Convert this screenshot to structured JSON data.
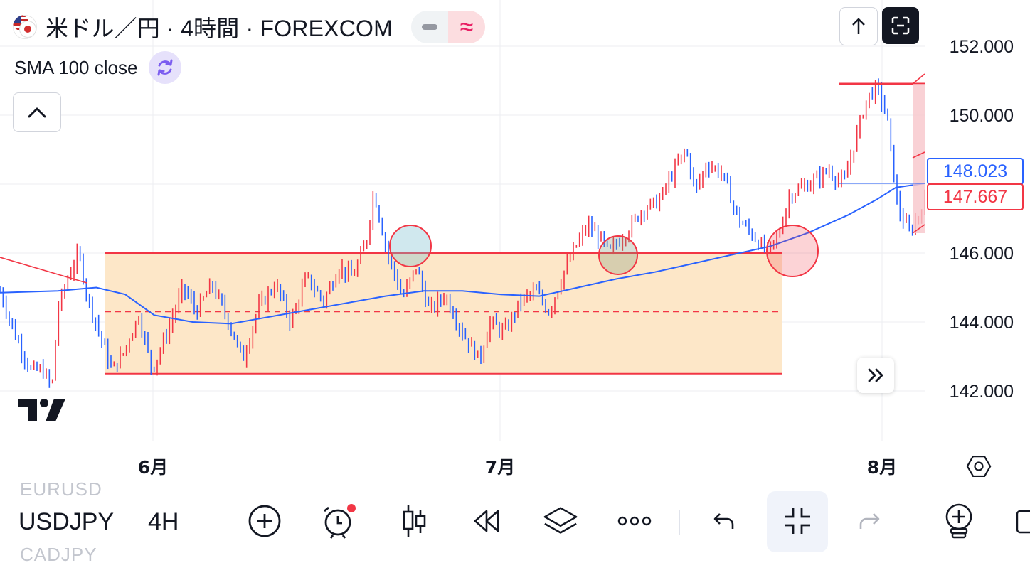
{
  "header": {
    "title": "米ドル／円 · 4時間 · FOREXCOM",
    "indicator_label": "SMA 100 close",
    "mode_minus_icon": "minus-icon",
    "mode_wave_glyph": "≈"
  },
  "colors": {
    "up": "#f23645",
    "down": "#2962ff",
    "sma": "#2962ff",
    "range_fill": "#fde7c8",
    "range_line": "#f23645",
    "grid": "#eceef2",
    "text": "#131722"
  },
  "price_tags": {
    "sma": "148.023",
    "last": "147.667"
  },
  "chart_data": {
    "type": "candlestick",
    "title": "米ドル／円 · 4時間 · FOREXCOM",
    "y_ticks": [
      "152.000",
      "150.000",
      "148.000",
      "146.000",
      "144.000",
      "142.000"
    ],
    "y_range": [
      140.3,
      152.8
    ],
    "x_ticks": [
      "6月",
      "7月",
      "8月"
    ],
    "series": [
      {
        "name": "SMA 100 close",
        "type": "line",
        "color": "#2962ff",
        "values_by_date": [
          [
            "5/21",
            144.8
          ],
          [
            "5/28",
            144.95
          ],
          [
            "6/04",
            144.9
          ],
          [
            "6/11",
            144.1
          ],
          [
            "6/18",
            143.95
          ],
          [
            "6/25",
            144.35
          ],
          [
            "7/02",
            144.8
          ],
          [
            "7/08",
            144.7
          ],
          [
            "7/15",
            145.3
          ],
          [
            "7/22",
            146.0
          ],
          [
            "7/29",
            147.2
          ],
          [
            "8/04",
            148.0
          ]
        ]
      }
    ],
    "price_path": [
      [
        0,
        144.9
      ],
      [
        0.8,
        143.6
      ],
      [
        1.6,
        142.6
      ],
      [
        2.2,
        142.6
      ],
      [
        2.7,
        142.1
      ],
      [
        3.0,
        144.4
      ],
      [
        3.6,
        145.4
      ],
      [
        4.1,
        146.0
      ],
      [
        4.5,
        144.8
      ],
      [
        5.2,
        143.6
      ],
      [
        5.8,
        142.6
      ],
      [
        6.4,
        143.1
      ],
      [
        7.2,
        144.2
      ],
      [
        7.9,
        142.6
      ],
      [
        8.6,
        143.6
      ],
      [
        9.5,
        145.0
      ],
      [
        10.2,
        144.3
      ],
      [
        11.0,
        145.1
      ],
      [
        11.8,
        144.1
      ],
      [
        12.6,
        142.9
      ],
      [
        13.4,
        144.4
      ],
      [
        14.3,
        145.1
      ],
      [
        15.1,
        144.0
      ],
      [
        15.9,
        145.3
      ],
      [
        16.8,
        144.6
      ],
      [
        17.6,
        145.6
      ],
      [
        18.3,
        145.3
      ],
      [
        19.0,
        146.3
      ],
      [
        19.4,
        147.8
      ],
      [
        20.1,
        146.0
      ],
      [
        20.9,
        144.7
      ],
      [
        21.6,
        145.6
      ],
      [
        22.3,
        144.3
      ],
      [
        23.1,
        144.8
      ],
      [
        24.0,
        143.7
      ],
      [
        24.9,
        142.9
      ],
      [
        25.4,
        144.0
      ],
      [
        26.2,
        143.7
      ],
      [
        27.0,
        144.6
      ],
      [
        27.8,
        144.9
      ],
      [
        28.5,
        144.3
      ],
      [
        29.3,
        145.5
      ],
      [
        29.9,
        146.2
      ],
      [
        30.5,
        146.8
      ],
      [
        31.2,
        146.4
      ],
      [
        31.6,
        146.0
      ],
      [
        32.5,
        146.6
      ],
      [
        33.4,
        147.3
      ],
      [
        34.2,
        147.5
      ],
      [
        34.9,
        148.3
      ],
      [
        35.6,
        149.0
      ],
      [
        36.1,
        147.8
      ],
      [
        36.7,
        148.6
      ],
      [
        37.5,
        148.3
      ],
      [
        38.3,
        147.0
      ],
      [
        39.1,
        146.5
      ],
      [
        39.8,
        146.0
      ],
      [
        40.4,
        146.5
      ],
      [
        41.0,
        147.7
      ],
      [
        42.0,
        148.0
      ],
      [
        43.0,
        148.4
      ],
      [
        43.8,
        148.0
      ],
      [
        44.4,
        149.3
      ],
      [
        45.0,
        150.5
      ],
      [
        45.5,
        150.8
      ],
      [
        46.0,
        150.1
      ],
      [
        46.6,
        147.3
      ],
      [
        47.2,
        146.6
      ],
      [
        47.6,
        147.0
      ],
      [
        48.0,
        147.5
      ]
    ],
    "annotations": {
      "range_box": {
        "top": 146.0,
        "bottom": 142.5,
        "mid": 144.3,
        "x_from": "5/23",
        "x_to": "7/27"
      },
      "resistance_line_top": 151.0,
      "trend_line_start": "left-top",
      "circles": [
        "6/26",
        "7/13",
        "7/28"
      ],
      "short_position_box": "8/06"
    }
  },
  "toolbar": {
    "symbol": "USDJPY",
    "symbol_prev": "EURUSD",
    "symbol_next": "CADJPY",
    "timeframe": "4H",
    "icons": [
      "plus-circle-icon",
      "alarm-icon",
      "candles-icon",
      "replay-icon",
      "layers-icon",
      "more-icon",
      "undo-icon",
      "collapse-icon",
      "redo-icon",
      "indicators-icon"
    ]
  }
}
